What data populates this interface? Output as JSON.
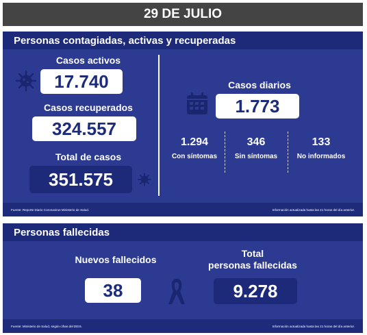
{
  "date": "29 DE JULIO",
  "section1": {
    "title": "Personas contagiadas, activas y recuperadas",
    "active_label": "Casos activos",
    "active_value": "17.740",
    "recovered_label": "Casos recuperados",
    "recovered_value": "324.557",
    "total_label": "Total de casos",
    "total_value": "351.575",
    "daily_label": "Casos diarios",
    "daily_value": "1.773",
    "breakdown": [
      {
        "value": "1.294",
        "label": "Con síntomas"
      },
      {
        "value": "346",
        "label": "Sin síntomas"
      },
      {
        "value": "133",
        "label": "No informados"
      }
    ],
    "footer_left": "Fuente: Reporte Diario Coronavirus Ministerio de Salud.",
    "footer_right": "Información actualizada hasta las 21 horas del día anterior."
  },
  "section2": {
    "title": "Personas fallecidas",
    "new_label": "Nuevos fallecidos",
    "new_value": "38",
    "total_label_line1": "Total",
    "total_label_line2": "personas fallecidas",
    "total_value": "9.278",
    "footer_left": "Fuente: Ministerio de Salud, según cifras del DEIS.",
    "footer_right": "Información actualizada hasta las 21 horas del día anterior."
  },
  "icons": [
    "virus-icon",
    "calendar-icon",
    "mourning-ribbon-icon"
  ],
  "colors": {
    "panel": "#2c3a92",
    "header": "#1c2a79",
    "datebar": "#444444"
  }
}
